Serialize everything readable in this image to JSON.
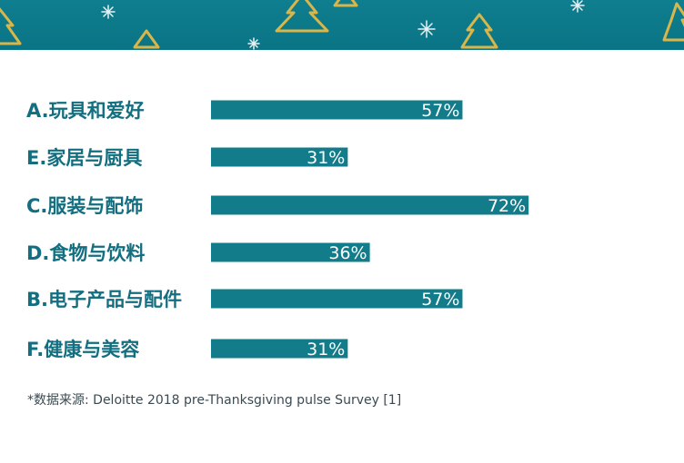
{
  "colors": {
    "banner": "#0f7e8e",
    "bar": "#127c8a",
    "category_text": "#136f80",
    "value_text": "#ffffff",
    "gold": "#d9b64a"
  },
  "banner": {
    "decorations": [
      "tree-icon",
      "snowflake-icon"
    ]
  },
  "chart_data": {
    "type": "bar",
    "orientation": "horizontal",
    "categories": [
      "A.玩具和爱好",
      "E.家居与厨具",
      "C.服装与配饰",
      "D.食物与饮料",
      "B.电子产品与配件",
      "F.健康与美容"
    ],
    "values": [
      57,
      31,
      72,
      36,
      57,
      31
    ],
    "value_labels": [
      "57%",
      "31%",
      "72%",
      "36%",
      "57%",
      "31%"
    ],
    "xlim": [
      0,
      100
    ],
    "grid": false,
    "legend": "none"
  },
  "source": "*数据来源: Deloitte 2018 pre-Thanksgiving pulse Survey [1]"
}
